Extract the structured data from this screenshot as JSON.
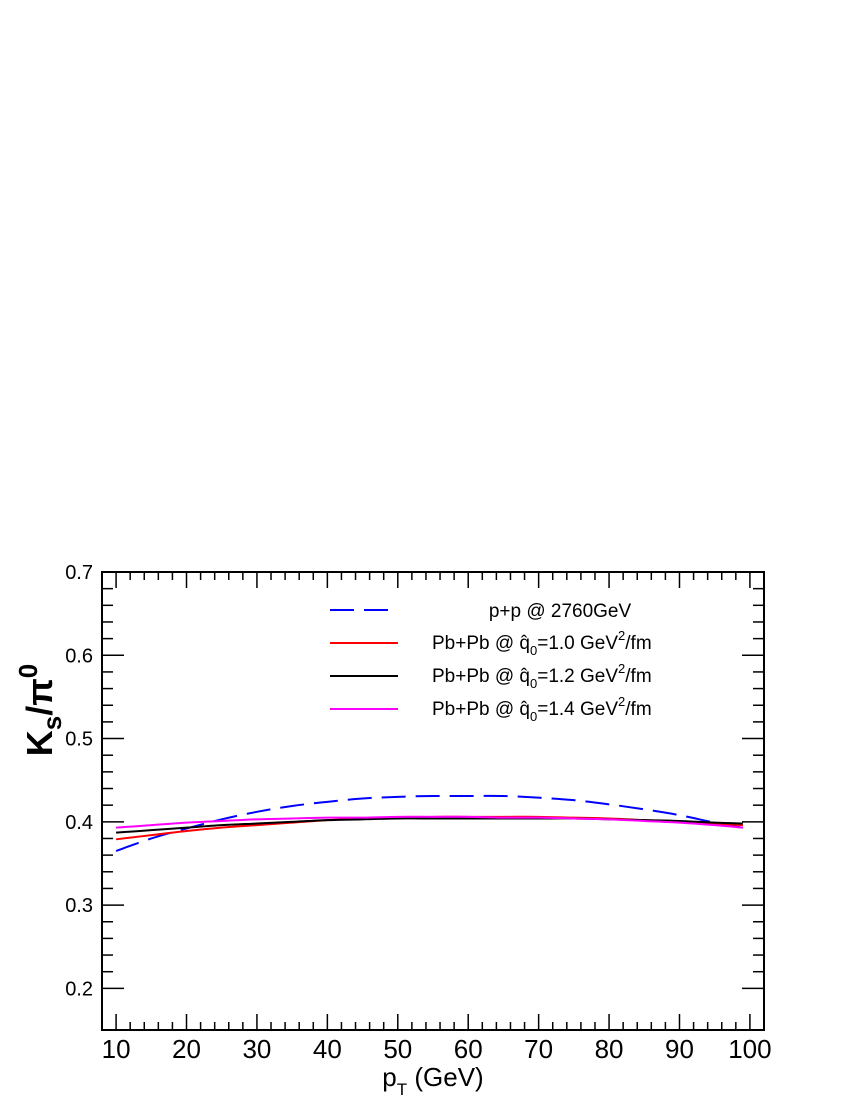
{
  "chart_data": {
    "type": "line",
    "xlabel": "p",
    "xlabel_sub": "T",
    "xlabel_unit": " (GeV)",
    "ylabel_main": "K",
    "ylabel_sub": "s",
    "ylabel_slash": "/π",
    "ylabel_sup": "0",
    "xlim": [
      8,
      102
    ],
    "ylim": [
      0.15,
      0.7
    ],
    "x_ticks": [
      10,
      20,
      30,
      40,
      50,
      60,
      70,
      80,
      90,
      100
    ],
    "x_tick_labels": [
      "10",
      "20",
      "30",
      "40",
      "50",
      "60",
      "70",
      "80",
      "90",
      "100"
    ],
    "y_ticks": [
      0.2,
      0.3,
      0.4,
      0.5,
      0.6,
      0.7
    ],
    "y_tick_labels": [
      "0.2",
      "0.3",
      "0.4",
      "0.5",
      "0.6",
      "0.7"
    ],
    "grid": false,
    "legend_position": "top-right",
    "series": [
      {
        "legend_text": "p+p @ 2760GeV",
        "color": "#0000ff",
        "dashed": true,
        "x": [
          10,
          15,
          20,
          25,
          30,
          35,
          40,
          45,
          50,
          55,
          60,
          65,
          70,
          75,
          80,
          85,
          90,
          95,
          99
        ],
        "y": [
          0.365,
          0.38,
          0.392,
          0.403,
          0.412,
          0.419,
          0.424,
          0.428,
          0.43,
          0.431,
          0.431,
          0.431,
          0.429,
          0.426,
          0.421,
          0.415,
          0.408,
          0.399,
          0.393
        ]
      },
      {
        "legend_prefix": "Pb+Pb @ ",
        "legend_value": "=1.0 GeV",
        "legend_unit": "/fm",
        "color": "#ff0000",
        "dashed": false,
        "x": [
          10,
          15,
          20,
          25,
          30,
          35,
          40,
          45,
          50,
          55,
          60,
          65,
          70,
          75,
          80,
          85,
          90,
          95,
          99
        ],
        "y": [
          0.379,
          0.384,
          0.389,
          0.393,
          0.396,
          0.399,
          0.402,
          0.404,
          0.405,
          0.406,
          0.406,
          0.406,
          0.406,
          0.405,
          0.404,
          0.402,
          0.4,
          0.398,
          0.396
        ]
      },
      {
        "legend_prefix": "Pb+Pb @ ",
        "legend_value": "=1.2 GeV",
        "legend_unit": "/fm",
        "color": "#000000",
        "dashed": false,
        "x": [
          10,
          15,
          20,
          25,
          30,
          35,
          40,
          45,
          50,
          55,
          60,
          65,
          70,
          75,
          80,
          85,
          90,
          95,
          99
        ],
        "y": [
          0.387,
          0.39,
          0.393,
          0.396,
          0.398,
          0.4,
          0.402,
          0.403,
          0.404,
          0.404,
          0.404,
          0.404,
          0.404,
          0.404,
          0.403,
          0.402,
          0.401,
          0.399,
          0.398
        ]
      },
      {
        "legend_prefix": "Pb+Pb @ ",
        "legend_value": "=1.4 GeV",
        "legend_unit": "/fm",
        "color": "#ff00ff",
        "dashed": false,
        "x": [
          10,
          15,
          20,
          25,
          30,
          35,
          40,
          45,
          50,
          55,
          60,
          65,
          70,
          75,
          80,
          85,
          90,
          95,
          99
        ],
        "y": [
          0.393,
          0.396,
          0.399,
          0.401,
          0.403,
          0.404,
          0.405,
          0.405,
          0.406,
          0.406,
          0.406,
          0.405,
          0.405,
          0.404,
          0.403,
          0.401,
          0.399,
          0.396,
          0.393
        ]
      }
    ],
    "legend_q_symbol": "q̂",
    "legend_q_sub": "0",
    "legend_sup": "2"
  }
}
